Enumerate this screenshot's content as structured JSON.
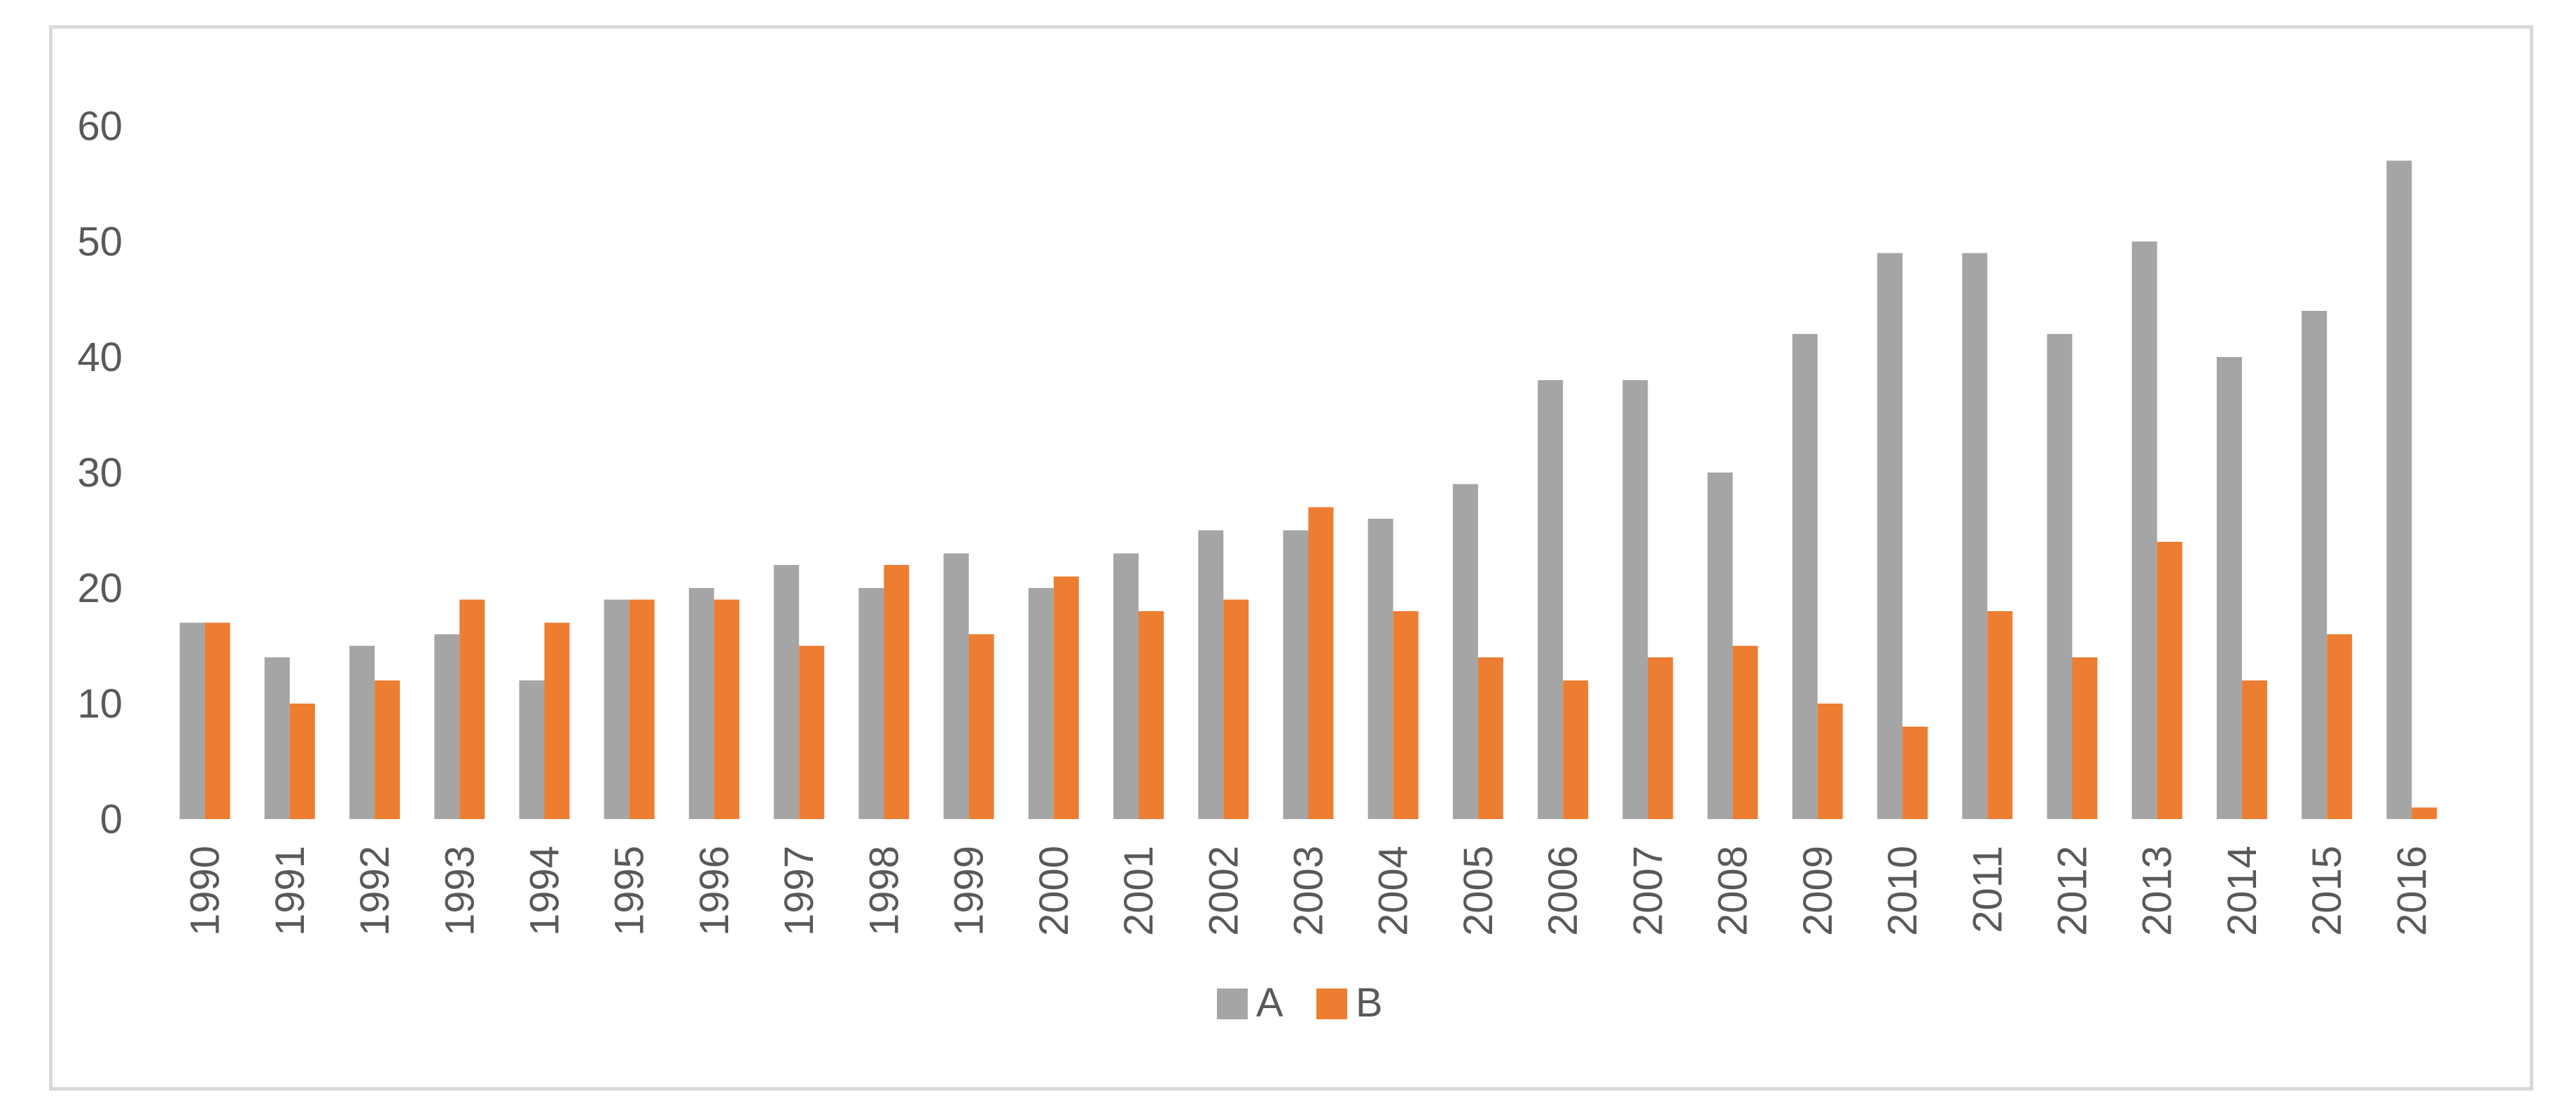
{
  "chart_data": {
    "type": "bar",
    "categories": [
      "1990",
      "1991",
      "1992",
      "1993",
      "1994",
      "1995",
      "1996",
      "1997",
      "1998",
      "1999",
      "2000",
      "2001",
      "2002",
      "2003",
      "2004",
      "2005",
      "2006",
      "2007",
      "2008",
      "2009",
      "2010",
      "2011",
      "2012",
      "2013",
      "2014",
      "2015",
      "2016"
    ],
    "series": [
      {
        "name": "A",
        "color": "#a5a5a5",
        "values": [
          17,
          14,
          15,
          16,
          12,
          19,
          20,
          22,
          20,
          23,
          20,
          23,
          25,
          25,
          26,
          29,
          38,
          38,
          30,
          42,
          49,
          49,
          42,
          50,
          40,
          44,
          57
        ]
      },
      {
        "name": "B",
        "color": "#ed7d31",
        "values": [
          17,
          10,
          12,
          19,
          17,
          19,
          19,
          15,
          22,
          16,
          21,
          18,
          19,
          27,
          18,
          14,
          12,
          14,
          15,
          10,
          8,
          18,
          14,
          24,
          12,
          16,
          1
        ]
      }
    ],
    "title": "",
    "xlabel": "",
    "ylabel": "",
    "ylim": [
      0,
      65
    ],
    "yticks": [
      0,
      10,
      20,
      30,
      40,
      50,
      60
    ],
    "grid": false,
    "legend_position": "bottom"
  }
}
